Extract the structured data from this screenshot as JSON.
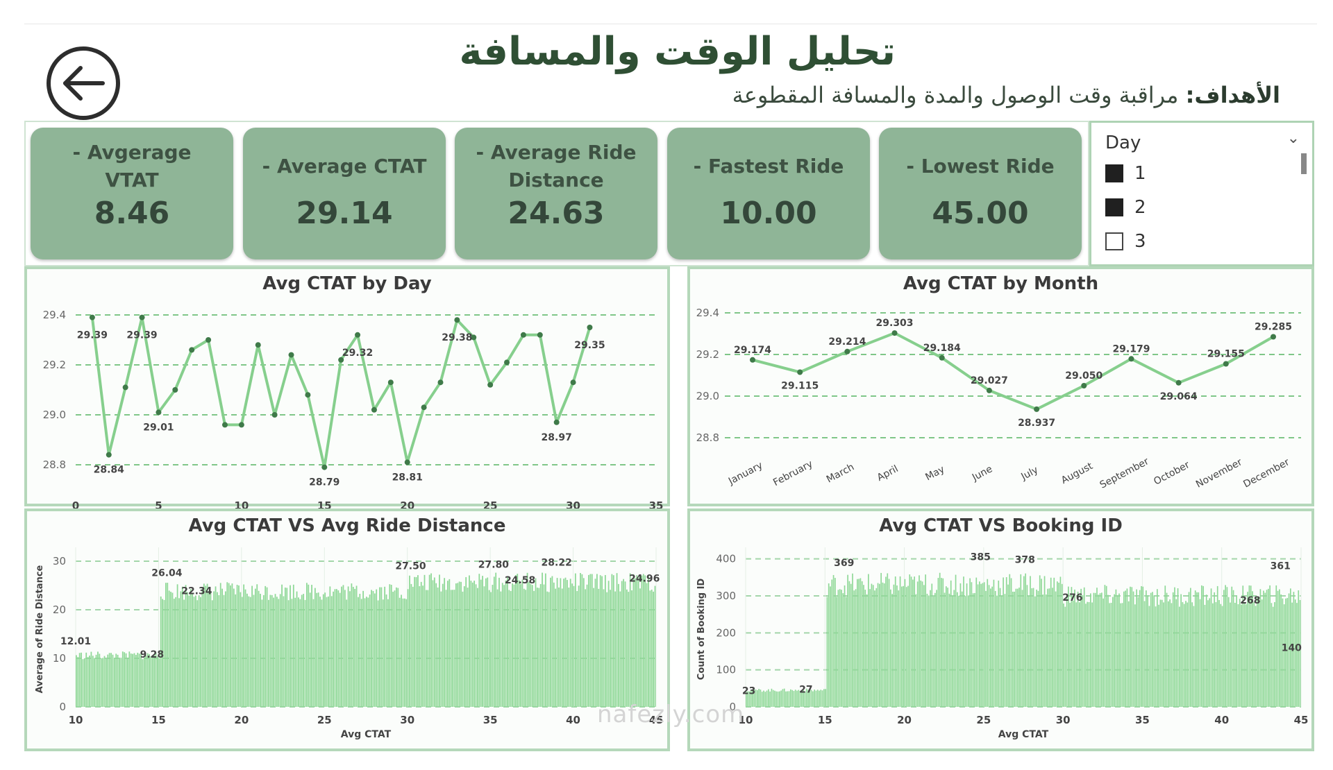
{
  "header": {
    "title": "تحليل الوقت والمسافة",
    "subtitle_label": "الأهداف:",
    "subtitle_text": "مراقبة وقت الوصول والمدة والمسافة المقطوعة"
  },
  "kpis": [
    {
      "label": "- Avgerage VTAT",
      "value": "8.46"
    },
    {
      "label": "- Average CTAT",
      "value": "29.14"
    },
    {
      "label": "- Average Ride Distance",
      "value": "24.63"
    },
    {
      "label": "- Fastest Ride",
      "value": "10.00"
    },
    {
      "label": "- Lowest Ride",
      "value": "45.00"
    }
  ],
  "slicer": {
    "title": "Day",
    "options": [
      {
        "label": "1",
        "checked": true
      },
      {
        "label": "2",
        "checked": true
      },
      {
        "label": "3",
        "checked": false
      }
    ]
  },
  "colors": {
    "accent": "#8fb597",
    "line": "#86cf8d",
    "bar": "#8fd897",
    "grid": "#7fc688"
  },
  "watermark": "nafezly.com",
  "chart_data": [
    {
      "type": "line",
      "title": "Avg CTAT by Day",
      "xlabel": "",
      "ylabel": "",
      "x": [
        1,
        2,
        3,
        4,
        5,
        6,
        7,
        8,
        9,
        10,
        11,
        12,
        13,
        14,
        15,
        16,
        17,
        18,
        19,
        20,
        21,
        22,
        23,
        24,
        25,
        26,
        27,
        28,
        29,
        30,
        31
      ],
      "values": [
        29.39,
        28.84,
        29.11,
        29.39,
        29.01,
        29.1,
        29.26,
        29.3,
        28.96,
        28.96,
        29.28,
        29.0,
        29.24,
        29.08,
        28.79,
        29.22,
        29.32,
        29.02,
        29.13,
        28.81,
        29.03,
        29.13,
        29.38,
        29.31,
        29.12,
        29.21,
        29.32,
        29.32,
        28.97,
        29.13,
        29.35
      ],
      "data_labels": [
        {
          "x": 1,
          "text": "29.39"
        },
        {
          "x": 2,
          "text": "28.84"
        },
        {
          "x": 4,
          "text": "29.39"
        },
        {
          "x": 5,
          "text": "29.01"
        },
        {
          "x": 15,
          "text": "28.79"
        },
        {
          "x": 17,
          "text": "29.32"
        },
        {
          "x": 20,
          "text": "28.81"
        },
        {
          "x": 23,
          "text": "29.38"
        },
        {
          "x": 29,
          "text": "28.97"
        },
        {
          "x": 31,
          "text": "29.35"
        }
      ],
      "xlim": [
        0,
        35
      ],
      "xticks": [
        "0",
        "5",
        "10",
        "15",
        "20",
        "25",
        "30",
        "35"
      ],
      "ylim": [
        28.7,
        29.45
      ],
      "yticks": [
        "28.8",
        "29.0",
        "29.2",
        "29.4"
      ],
      "grid": true
    },
    {
      "type": "line",
      "title": "Avg CTAT by Month",
      "xlabel": "",
      "ylabel": "",
      "categories": [
        "January",
        "February",
        "March",
        "April",
        "May",
        "June",
        "July",
        "August",
        "September",
        "October",
        "November",
        "December"
      ],
      "values": [
        29.174,
        29.115,
        29.214,
        29.303,
        29.184,
        29.027,
        28.937,
        29.05,
        29.179,
        29.064,
        29.155,
        29.285
      ],
      "data_labels": [
        "29.174",
        "29.115",
        "29.214",
        "29.303",
        "29.184",
        "29.027",
        "28.937",
        "29.050",
        "29.179",
        "29.064",
        "29.155",
        "29.285"
      ],
      "ylim": [
        28.75,
        29.45
      ],
      "yticks": [
        "28.8",
        "29.0",
        "29.2",
        "29.4"
      ],
      "grid": true
    },
    {
      "type": "bar",
      "title": "Avg CTAT VS Avg Ride Distance",
      "xlabel": "Avg CTAT",
      "ylabel": "Average of Ride Distance",
      "xlim": [
        10,
        45
      ],
      "xticks": [
        "10",
        "15",
        "20",
        "25",
        "30",
        "35",
        "40",
        "45"
      ],
      "ylim": [
        0,
        32
      ],
      "yticks": [
        "0",
        "10",
        "20",
        "30"
      ],
      "segments": [
        {
          "from": 10,
          "to": 15,
          "mean": 10.6
        },
        {
          "from": 15,
          "to": 30,
          "mean": 23.8
        },
        {
          "from": 30,
          "to": 45,
          "mean": 25.6
        }
      ],
      "data_labels": [
        {
          "x": 10.0,
          "value": 12.01,
          "text": "12.01"
        },
        {
          "x": 14.6,
          "value": 9.28,
          "text": "9.28"
        },
        {
          "x": 15.5,
          "value": 26.04,
          "text": "26.04"
        },
        {
          "x": 17.3,
          "value": 22.34,
          "text": "22.34"
        },
        {
          "x": 30.2,
          "value": 27.5,
          "text": "27.50"
        },
        {
          "x": 35.2,
          "value": 27.8,
          "text": "27.80"
        },
        {
          "x": 36.8,
          "value": 24.58,
          "text": "24.58"
        },
        {
          "x": 39.0,
          "value": 28.22,
          "text": "28.22"
        },
        {
          "x": 44.3,
          "value": 24.96,
          "text": "24.96"
        }
      ],
      "grid": true
    },
    {
      "type": "bar",
      "title": "Avg CTAT VS Booking ID",
      "xlabel": "Avg CTAT",
      "ylabel": "Count of Booking ID",
      "xlim": [
        10,
        45
      ],
      "xticks": [
        "10",
        "15",
        "20",
        "25",
        "30",
        "35",
        "40",
        "45"
      ],
      "ylim": [
        0,
        420
      ],
      "yticks": [
        "0",
        "100",
        "200",
        "300",
        "400"
      ],
      "segments": [
        {
          "from": 10,
          "to": 15,
          "mean": 45
        },
        {
          "from": 15,
          "to": 30,
          "mean": 330
        },
        {
          "from": 30,
          "to": 45,
          "mean": 300
        }
      ],
      "data_labels": [
        {
          "x": 10.2,
          "value": 23,
          "text": "23"
        },
        {
          "x": 13.8,
          "value": 27,
          "text": "27"
        },
        {
          "x": 16.2,
          "value": 369,
          "text": "369"
        },
        {
          "x": 24.8,
          "value": 385,
          "text": "385"
        },
        {
          "x": 27.6,
          "value": 378,
          "text": "378"
        },
        {
          "x": 30.6,
          "value": 276,
          "text": "276"
        },
        {
          "x": 41.8,
          "value": 268,
          "text": "268"
        },
        {
          "x": 43.7,
          "value": 361,
          "text": "361"
        },
        {
          "x": 44.4,
          "value": 140,
          "text": "140"
        }
      ],
      "grid": true
    }
  ]
}
